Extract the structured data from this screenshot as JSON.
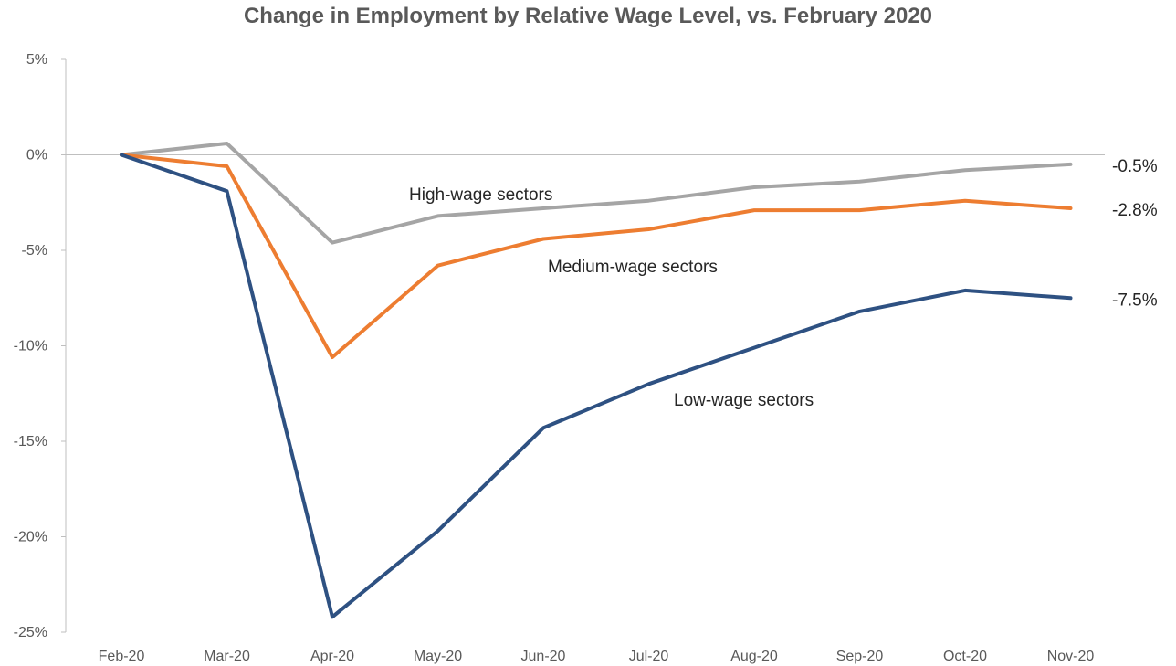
{
  "chart_data": {
    "type": "line",
    "title": "Change in Employment by Relative Wage Level, vs. February 2020",
    "xlabel": "",
    "ylabel": "",
    "categories": [
      "Feb-20",
      "Mar-20",
      "Apr-20",
      "May-20",
      "Jun-20",
      "Jul-20",
      "Aug-20",
      "Sep-20",
      "Oct-20",
      "Nov-20"
    ],
    "ylim": [
      -25,
      5
    ],
    "yticks": [
      5,
      0,
      -5,
      -10,
      -15,
      -20,
      -25
    ],
    "ytick_labels": [
      "5%",
      "0%",
      "-5%",
      "-10%",
      "-15%",
      "-20%",
      "-25%"
    ],
    "grid": false,
    "series": [
      {
        "name": "High-wage sectors",
        "color": "#a5a5a5",
        "values": [
          0,
          0.6,
          -4.6,
          -3.2,
          -2.8,
          -2.4,
          -1.7,
          -1.4,
          -0.8,
          -0.5
        ],
        "end_label": "-0.5%"
      },
      {
        "name": "Medium-wage sectors",
        "color": "#ed7d31",
        "values": [
          0,
          -0.6,
          -10.6,
          -5.8,
          -4.4,
          -3.9,
          -2.9,
          -2.9,
          -2.4,
          -2.8
        ],
        "end_label": "-2.8%"
      },
      {
        "name": "Low-wage sectors",
        "color": "#2e5182",
        "values": [
          0,
          -1.9,
          -24.2,
          -19.7,
          -14.3,
          -12.0,
          -10.1,
          -8.2,
          -7.1,
          -7.5
        ],
        "end_label": "-7.5%"
      }
    ]
  }
}
